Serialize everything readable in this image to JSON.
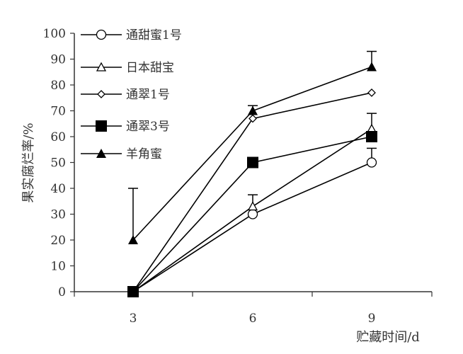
{
  "chart_data": {
    "type": "line",
    "x": [
      3,
      6,
      9
    ],
    "xlabel": "贮藏时间/d",
    "ylabel": "果实腐烂率/%",
    "ylim": [
      0,
      100
    ],
    "yticks": [
      0,
      10,
      20,
      30,
      40,
      50,
      60,
      70,
      80,
      90,
      100
    ],
    "xticks": [
      3,
      6,
      9
    ],
    "legend_position": "top-left",
    "grid": false,
    "series": [
      {
        "name": "通甜蜜1号",
        "marker": "circle-open",
        "values": [
          0,
          30,
          50
        ],
        "error_up": [
          0,
          0,
          5.5
        ]
      },
      {
        "name": "日本甜宝",
        "marker": "triangle-open",
        "values": [
          0,
          33,
          63
        ],
        "error_up": [
          0,
          4.5,
          6
        ]
      },
      {
        "name": "通翠1号",
        "marker": "diamond-open",
        "values": [
          0,
          67,
          77
        ],
        "error_up": [
          0,
          0,
          0
        ]
      },
      {
        "name": "通翠3号",
        "marker": "square-filled",
        "values": [
          0,
          50,
          60
        ],
        "error_up": [
          0,
          0,
          0
        ]
      },
      {
        "name": "羊角蜜",
        "marker": "triangle-filled",
        "values": [
          20,
          70,
          87
        ],
        "error_up": [
          20,
          2,
          6
        ]
      }
    ],
    "colors": {
      "line": "#000000",
      "axis": "#333333"
    }
  }
}
